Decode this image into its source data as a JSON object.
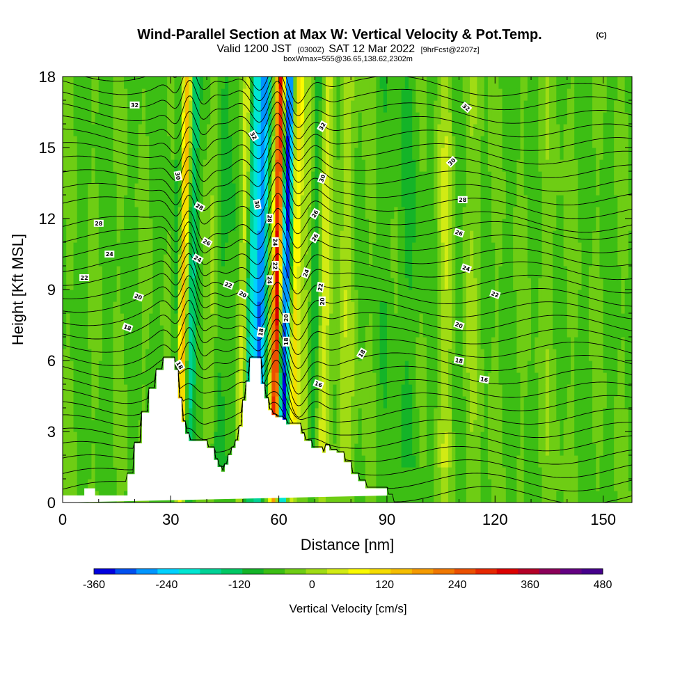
{
  "header": {
    "title": "Wind-Parallel Section at Max W: Vertical Velocity & Pot.Temp.",
    "title_mark": "(C)",
    "valid_prefix": "Valid 1200 JST",
    "valid_utc": "(0300Z)",
    "valid_date": "SAT 12 Mar 2022",
    "forecast": "[9hrFcst@2207z]",
    "box_info": "boxWmax=555@36.65,138.62,2302m"
  },
  "chart_data": {
    "type": "heatmap",
    "xlabel": "Distance [nm]",
    "ylabel": "Height [Kft MSL]",
    "xlim": [
      0,
      158
    ],
    "ylim": [
      0,
      18
    ],
    "x_ticks": [
      "0",
      "30",
      "60",
      "90",
      "120",
      "150"
    ],
    "x_tick_values": [
      0,
      30,
      60,
      90,
      120,
      150
    ],
    "y_ticks": [
      "0",
      "3",
      "6",
      "9",
      "12",
      "15",
      "18"
    ],
    "y_tick_values": [
      0,
      3,
      6,
      9,
      12,
      15,
      18
    ],
    "colorbar": {
      "title": "Vertical Velocity [cm/s]",
      "labels": [
        "-360",
        "-240",
        "-120",
        "0",
        "120",
        "240",
        "360",
        "480"
      ],
      "label_values": [
        -360,
        -240,
        -120,
        0,
        120,
        240,
        360,
        480
      ],
      "min": -360,
      "max": 480,
      "step": 40,
      "colors": [
        "#0000e0",
        "#0050f0",
        "#0096ff",
        "#00d2ff",
        "#00e6d2",
        "#00d296",
        "#00c864",
        "#14b428",
        "#3cbe14",
        "#6ecd14",
        "#a0dc14",
        "#d2eb14",
        "#fafa00",
        "#f5dc00",
        "#f5be00",
        "#f59b00",
        "#f07800",
        "#eb5000",
        "#e62800",
        "#dc0000",
        "#b40028",
        "#8c005a",
        "#640082",
        "#46008c"
      ]
    },
    "terrain": {
      "x": [
        0,
        6,
        6,
        9,
        9,
        18,
        18,
        20,
        20,
        22,
        22,
        24,
        24,
        26,
        26,
        28,
        28,
        30,
        30,
        31,
        31,
        32,
        32,
        33,
        33,
        34,
        34,
        35,
        35,
        37,
        37,
        40,
        40,
        42,
        42,
        43,
        43,
        44,
        44,
        45,
        45,
        46,
        46,
        47,
        47,
        48,
        48,
        49,
        49,
        50,
        50,
        51,
        51,
        52,
        52,
        53,
        53,
        55,
        55,
        56,
        56,
        57,
        57,
        58,
        58,
        59,
        59,
        60,
        60,
        61,
        61,
        62,
        62,
        63,
        63,
        66,
        66,
        67,
        67,
        69,
        69,
        72,
        72,
        73,
        73,
        74,
        74,
        76,
        76,
        78,
        78,
        80,
        80,
        82,
        82,
        84,
        84,
        86,
        86,
        90,
        90,
        92,
        92,
        158
      ],
      "z": [
        0.3,
        0.3,
        0.6,
        0.6,
        0.3,
        0.3,
        1.2,
        1.2,
        2.5,
        2.5,
        3.8,
        3.8,
        4.8,
        4.8,
        5.6,
        5.6,
        6.1,
        6.1,
        6.1,
        6.1,
        5.6,
        5.6,
        4.4,
        4.4,
        3.4,
        3.4,
        2.9,
        2.9,
        2.6,
        2.6,
        2.6,
        2.6,
        2.3,
        2.3,
        1.8,
        1.8,
        1.5,
        1.5,
        1.3,
        1.3,
        1.6,
        1.6,
        2.0,
        2.0,
        2.3,
        2.3,
        2.6,
        2.6,
        3.2,
        3.2,
        4.3,
        4.3,
        5.1,
        5.1,
        6.1,
        6.1,
        6.1,
        6.1,
        5.0,
        5.0,
        4.4,
        4.4,
        3.9,
        3.9,
        3.7,
        3.7,
        3.6,
        3.6,
        3.6,
        3.6,
        3.5,
        3.5,
        3.3,
        3.3,
        3.3,
        3.3,
        2.9,
        2.9,
        2.6,
        2.6,
        2.3,
        2.3,
        2.1,
        2.1,
        2.4,
        2.4,
        2.2,
        2.2,
        2.1,
        2.1,
        1.7,
        1.7,
        1.2,
        1.2,
        0.9,
        0.9,
        0.6,
        0.6,
        0.6,
        0.6,
        0.3,
        0.3,
        0.3
      ]
    },
    "contour_labels": [
      {
        "text": "32",
        "x": 20,
        "y": 16.8,
        "rot": 0
      },
      {
        "text": "32",
        "x": 112,
        "y": 16.7,
        "rot": 40
      },
      {
        "text": "32",
        "x": 53,
        "y": 15.5,
        "rot": 60
      },
      {
        "text": "32",
        "x": 72,
        "y": 15.9,
        "rot": -60
      },
      {
        "text": "30",
        "x": 32,
        "y": 13.8,
        "rot": 80
      },
      {
        "text": "30",
        "x": 108,
        "y": 14.4,
        "rot": -45
      },
      {
        "text": "30",
        "x": 54,
        "y": 12.6,
        "rot": 80
      },
      {
        "text": "30",
        "x": 72,
        "y": 13.7,
        "rot": -70
      },
      {
        "text": "28",
        "x": 38,
        "y": 12.5,
        "rot": 30
      },
      {
        "text": "28",
        "x": 10,
        "y": 11.8,
        "rot": 0
      },
      {
        "text": "28",
        "x": 111,
        "y": 12.8,
        "rot": 0
      },
      {
        "text": "28",
        "x": 57.5,
        "y": 12.0,
        "rot": 90
      },
      {
        "text": "26",
        "x": 70,
        "y": 12.2,
        "rot": -60
      },
      {
        "text": "26",
        "x": 40,
        "y": 11.0,
        "rot": 30
      },
      {
        "text": "26",
        "x": 70,
        "y": 11.2,
        "rot": -60
      },
      {
        "text": "26",
        "x": 110,
        "y": 11.4,
        "rot": 20
      },
      {
        "text": "24",
        "x": 59,
        "y": 11.0,
        "rot": 90
      },
      {
        "text": "24",
        "x": 13,
        "y": 10.5,
        "rot": 0
      },
      {
        "text": "24",
        "x": 37.5,
        "y": 10.3,
        "rot": 30
      },
      {
        "text": "24",
        "x": 112,
        "y": 9.9,
        "rot": 20
      },
      {
        "text": "22",
        "x": 59,
        "y": 10.0,
        "rot": 90
      },
      {
        "text": "22",
        "x": 6,
        "y": 9.5,
        "rot": 0
      },
      {
        "text": "22",
        "x": 46,
        "y": 9.2,
        "rot": 20
      },
      {
        "text": "22",
        "x": 71.5,
        "y": 9.1,
        "rot": -80
      },
      {
        "text": "22",
        "x": 120,
        "y": 8.8,
        "rot": 20
      },
      {
        "text": "24",
        "x": 57.5,
        "y": 9.4,
        "rot": 90
      },
      {
        "text": "24",
        "x": 67.5,
        "y": 9.7,
        "rot": -70
      },
      {
        "text": "20",
        "x": 21,
        "y": 8.7,
        "rot": 20
      },
      {
        "text": "20",
        "x": 50,
        "y": 8.8,
        "rot": 30
      },
      {
        "text": "20",
        "x": 72,
        "y": 8.5,
        "rot": -90
      },
      {
        "text": "20",
        "x": 62,
        "y": 7.8,
        "rot": -90
      },
      {
        "text": "20",
        "x": 110,
        "y": 7.5,
        "rot": 20
      },
      {
        "text": "18",
        "x": 18,
        "y": 7.4,
        "rot": 20
      },
      {
        "text": "18",
        "x": 55,
        "y": 7.2,
        "rot": -80
      },
      {
        "text": "18",
        "x": 62,
        "y": 6.8,
        "rot": -90
      },
      {
        "text": "18",
        "x": 83,
        "y": 6.3,
        "rot": -60
      },
      {
        "text": "18",
        "x": 110,
        "y": 6.0,
        "rot": 10
      },
      {
        "text": "18",
        "x": 32.5,
        "y": 5.8,
        "rot": 60
      },
      {
        "text": "16",
        "x": 71,
        "y": 5.0,
        "rot": 20
      },
      {
        "text": "16",
        "x": 117,
        "y": 5.2,
        "rot": 10
      }
    ]
  }
}
